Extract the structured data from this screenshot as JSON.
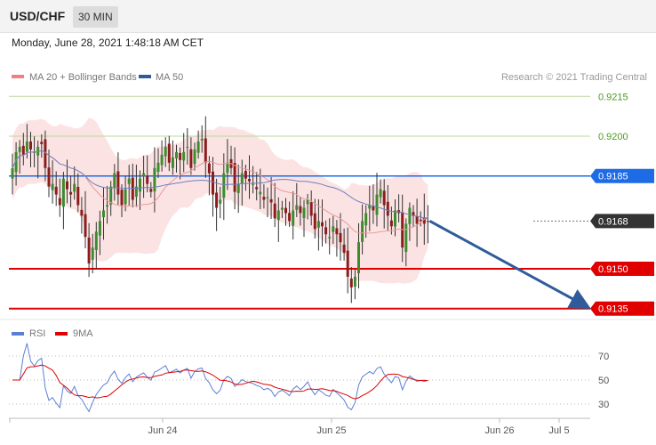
{
  "header": {
    "symbol": "USD/CHF",
    "timeframe": "30 MIN",
    "datetime": "Monday, June 28, 2021 1:48:18 AM CET"
  },
  "legend": {
    "ma20": "MA 20 + Bollinger Bands",
    "ma50": "MA 50",
    "credit": "Research © 2021 Trading Central",
    "colors": {
      "ma20": "#f08080",
      "ma50": "#2f5b9a"
    }
  },
  "chart_data": [
    {
      "type": "candlestick",
      "title": "",
      "x_ticks": [
        "Jun 24",
        "Jun 25",
        "Jun 26",
        "Jul 5"
      ],
      "ylim": [
        0.9125,
        0.9225
      ],
      "levels": [
        {
          "label": "0.9215",
          "value": 0.9215,
          "style": "green-line"
        },
        {
          "label": "0.9200",
          "value": 0.92,
          "style": "green-line"
        },
        {
          "label": "0.9185",
          "value": 0.9185,
          "style": "blue-box",
          "color": "#1e6be6"
        },
        {
          "label": "0.9168",
          "value": 0.9168,
          "style": "dark-box",
          "color": "#333333"
        },
        {
          "label": "0.9150",
          "value": 0.915,
          "style": "red-box",
          "color": "#e00000"
        },
        {
          "label": "0.9135",
          "value": 0.9135,
          "style": "red-box",
          "color": "#e00000"
        }
      ],
      "projection": {
        "from": 0.9168,
        "to": 0.9135,
        "color": "#2f5b9a"
      },
      "closes": [
        0.9188,
        0.9194,
        0.9196,
        0.9193,
        0.9198,
        0.9195,
        0.9194,
        0.9196,
        0.9197,
        0.9188,
        0.9181,
        0.9182,
        0.9178,
        0.9174,
        0.9184,
        0.918,
        0.9178,
        0.9182,
        0.9174,
        0.917,
        0.9162,
        0.9152,
        0.9158,
        0.9164,
        0.9168,
        0.9172,
        0.9174,
        0.9181,
        0.9186,
        0.9178,
        0.9174,
        0.918,
        0.9184,
        0.9176,
        0.9181,
        0.9184,
        0.9186,
        0.9182,
        0.9179,
        0.9188,
        0.919,
        0.9193,
        0.9196,
        0.919,
        0.9192,
        0.9194,
        0.9191,
        0.9194,
        0.9196,
        0.9188,
        0.9195,
        0.9198,
        0.9199,
        0.919,
        0.9186,
        0.9178,
        0.9173,
        0.9176,
        0.9186,
        0.919,
        0.9188,
        0.9179,
        0.9182,
        0.9186,
        0.9184,
        0.9183,
        0.9182,
        0.918,
        0.9179,
        0.9176,
        0.9177,
        0.9175,
        0.9169,
        0.9172,
        0.9173,
        0.9171,
        0.9168,
        0.9172,
        0.9174,
        0.9171,
        0.9173,
        0.9176,
        0.917,
        0.9165,
        0.9168,
        0.9166,
        0.9163,
        0.9162,
        0.9166,
        0.9163,
        0.916,
        0.9156,
        0.9147,
        0.9143,
        0.9147,
        0.916,
        0.9168,
        0.9171,
        0.9174,
        0.9172,
        0.9178,
        0.918,
        0.9174,
        0.917,
        0.9166,
        0.9172,
        0.9171,
        0.9158,
        0.9167,
        0.9173,
        0.917,
        0.9167,
        0.9168,
        0.9167,
        0.9168
      ]
    },
    {
      "type": "line",
      "title": "",
      "series": [
        {
          "name": "RSI",
          "color": "#5b7fd6"
        },
        {
          "name": "9MA",
          "color": "#e00000"
        }
      ],
      "y_ticks": [
        "70",
        "50",
        "30"
      ],
      "ylim": [
        20,
        80
      ]
    }
  ]
}
